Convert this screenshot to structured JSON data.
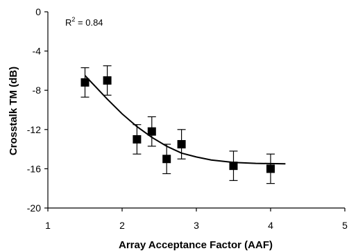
{
  "chart_data": {
    "type": "scatter",
    "title": "",
    "xlabel": "Array Acceptance Factor (AAF)",
    "ylabel": "Crosstalk TM (dB)",
    "xlim": [
      1,
      5
    ],
    "ylim": [
      -20,
      0
    ],
    "xticks": [
      1,
      2,
      3,
      4,
      5
    ],
    "yticks": [
      0,
      -4,
      -8,
      -12,
      -16,
      -20
    ],
    "grid": false,
    "legend": "none",
    "annotation": {
      "prefix": "R",
      "superscript": "2",
      "suffix": " = 0.84"
    },
    "series": [
      {
        "marker": "square",
        "color": "#000000",
        "points": [
          {
            "x": 1.5,
            "y": -7.2,
            "err": 1.5
          },
          {
            "x": 1.8,
            "y": -7.0,
            "err": 1.5
          },
          {
            "x": 2.2,
            "y": -13.0,
            "err": 1.5
          },
          {
            "x": 2.4,
            "y": -12.2,
            "err": 1.5
          },
          {
            "x": 2.6,
            "y": -15.0,
            "err": 1.5
          },
          {
            "x": 2.8,
            "y": -13.5,
            "err": 1.5
          },
          {
            "x": 3.5,
            "y": -15.7,
            "err": 1.5
          },
          {
            "x": 4.0,
            "y": -16.0,
            "err": 1.5
          }
        ]
      }
    ],
    "trendline": {
      "color": "#000000",
      "points": [
        {
          "x": 1.5,
          "y": -6.5
        },
        {
          "x": 1.8,
          "y": -8.9
        },
        {
          "x": 2.0,
          "y": -10.4
        },
        {
          "x": 2.2,
          "y": -11.7
        },
        {
          "x": 2.4,
          "y": -12.8
        },
        {
          "x": 2.6,
          "y": -13.7
        },
        {
          "x": 2.8,
          "y": -14.4
        },
        {
          "x": 3.0,
          "y": -14.8
        },
        {
          "x": 3.2,
          "y": -15.1
        },
        {
          "x": 3.5,
          "y": -15.35
        },
        {
          "x": 3.8,
          "y": -15.45
        },
        {
          "x": 4.2,
          "y": -15.5
        }
      ]
    }
  }
}
